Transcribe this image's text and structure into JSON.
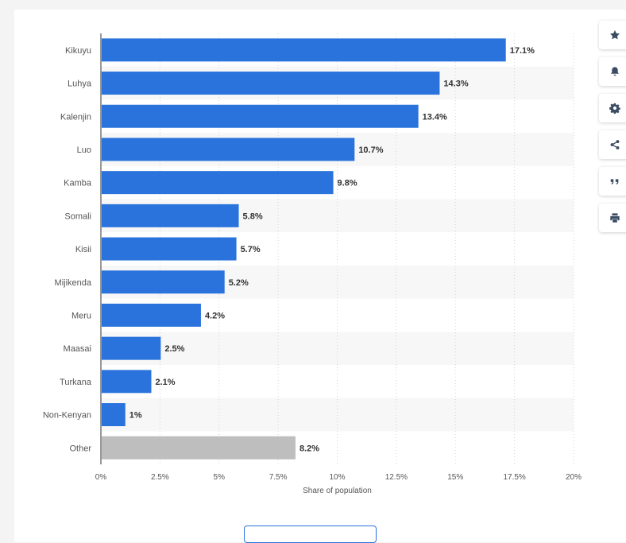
{
  "chart_data": {
    "type": "bar",
    "orientation": "horizontal",
    "categories": [
      "Kikuyu",
      "Luhya",
      "Kalenjin",
      "Luo",
      "Kamba",
      "Somali",
      "Kisii",
      "Mijikenda",
      "Meru",
      "Maasai",
      "Turkana",
      "Non-Kenyan",
      "Other"
    ],
    "values": [
      17.1,
      14.3,
      13.4,
      10.7,
      9.8,
      5.8,
      5.7,
      5.2,
      4.2,
      2.5,
      2.1,
      1,
      8.2
    ],
    "value_labels": [
      "17.1%",
      "14.3%",
      "13.4%",
      "10.7%",
      "9.8%",
      "5.8%",
      "5.7%",
      "5.2%",
      "4.2%",
      "2.5%",
      "2.1%",
      "1%",
      "8.2%"
    ],
    "highlight_category": "Other",
    "xlabel": "Share of population",
    "xlim": [
      0,
      20
    ],
    "xticks": [
      0,
      2.5,
      5,
      7.5,
      10,
      12.5,
      15,
      17.5,
      20
    ],
    "xtick_labels": [
      "0%",
      "2.5%",
      "5%",
      "7.5%",
      "10%",
      "12.5%",
      "15%",
      "17.5%",
      "20%"
    ],
    "grid": "vertical-dotted",
    "colors": {
      "bar": "#2a73dc",
      "highlight": "#bebebe",
      "label": "#333333",
      "axis_text": "#555555",
      "band": "#f7f7f7"
    }
  },
  "sidebar": [
    {
      "icon": "star-icon"
    },
    {
      "icon": "bell-icon"
    },
    {
      "icon": "gear-icon"
    },
    {
      "icon": "share-icon"
    },
    {
      "icon": "quote-icon"
    },
    {
      "icon": "print-icon"
    }
  ]
}
